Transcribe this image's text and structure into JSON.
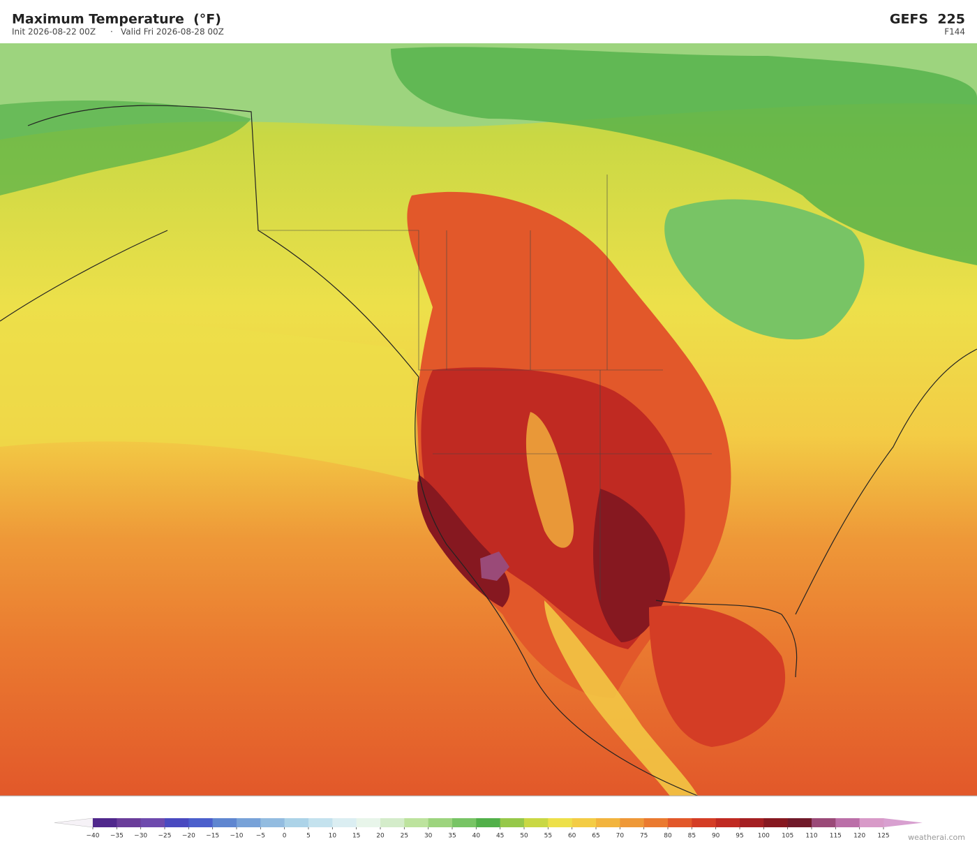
{
  "header": {
    "title": "Maximum Temperature  (°F)",
    "init": "Init 2026-08-22 00Z",
    "separator": "·",
    "valid": "Valid Fri 2026-08-28 00Z",
    "model": "GEFS  225",
    "forecast_hour": "F144"
  },
  "colorbar": {
    "ticks": [
      {
        "value": -40,
        "label": "−40"
      },
      {
        "value": -35,
        "label": "−35"
      },
      {
        "value": -30,
        "label": "−30"
      },
      {
        "value": -25,
        "label": "−25"
      },
      {
        "value": -20,
        "label": "−20"
      },
      {
        "value": -15,
        "label": "−15"
      },
      {
        "value": -10,
        "label": "−10"
      },
      {
        "value": -5,
        "label": "−5"
      },
      0,
      5,
      10,
      15,
      20,
      25,
      30,
      35,
      40,
      45,
      50,
      55,
      60,
      65,
      70,
      75,
      80,
      85,
      90,
      95,
      100,
      105,
      110,
      115,
      120,
      125
    ],
    "colors": [
      "#50288c",
      "#6a3d9a",
      "#6e4aad",
      "#4a4ac0",
      "#4b5fcc",
      "#5f86d0",
      "#78a2d8",
      "#93bce0",
      "#acd3e8",
      "#c4e2ee",
      "#dbeef2",
      "#e8f5ea",
      "#d4ecca",
      "#bde39e",
      "#9dd47e",
      "#78c465",
      "#52b04a",
      "#96c84a",
      "#c9d844",
      "#ede04a",
      "#f3cc45",
      "#f2b43e",
      "#ee9838",
      "#ea7a30",
      "#e2582a",
      "#d43d25",
      "#c02a22",
      "#a41f22",
      "#861820",
      "#701a2a",
      "#9a4a78",
      "#bb6fa8",
      "#d89ac8"
    ],
    "under_color": "#f6f2f7",
    "over_color": "#d8a0d0"
  },
  "footer": {
    "credit": "weatherai.com"
  }
}
